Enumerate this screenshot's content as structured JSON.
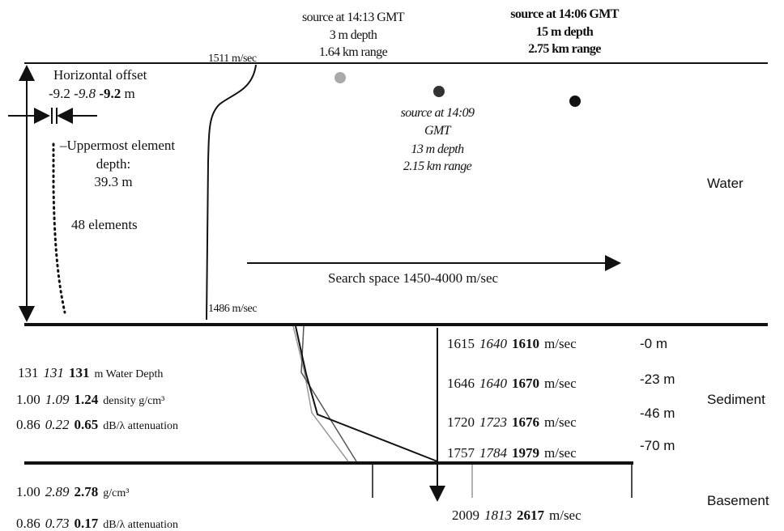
{
  "sources": [
    {
      "time": "source at 14:13 GMT",
      "depth": "3 m depth",
      "range": "1.64 km range"
    },
    {
      "time": "source at 14:09",
      "time2": "GMT",
      "depth": "13 m depth",
      "range": "2.15 km range"
    },
    {
      "time": "source at 14:06 GMT",
      "depth": "15 m depth",
      "range": "2.75 km range"
    }
  ],
  "profile": {
    "top_speed": "1511 m/sec",
    "bottom_speed": "1486 m/sec"
  },
  "array": {
    "offset_title": "Horizontal offset",
    "offsets": [
      "-9.2",
      "-9.8",
      "-9.2"
    ],
    "offset_unit": "m",
    "uppermost": [
      "–Uppermost element",
      "depth:",
      "39.3 m"
    ],
    "elements": "48 elements"
  },
  "search_space": "Search space 1450-4000 m/sec",
  "layers": [
    "Water",
    "Sediment",
    "Basement"
  ],
  "sediment": {
    "water_depth": {
      "values": [
        "131",
        "131",
        "131"
      ],
      "label": "m  Water Depth"
    },
    "density": {
      "values": [
        "1.00",
        "1.09",
        "1.24"
      ],
      "label": "density g/cm³"
    },
    "attenuation": {
      "values": [
        "0.86",
        "0.22",
        "0.65"
      ],
      "label": "dB/λ  attenuation"
    },
    "speeds": [
      {
        "values": [
          "1615",
          "1640",
          "1610"
        ],
        "unit": "m/sec"
      },
      {
        "values": [
          "1646",
          "1640",
          "1670"
        ],
        "unit": "m/sec"
      },
      {
        "values": [
          "1720",
          "1723",
          "1676"
        ],
        "unit": "m/sec"
      },
      {
        "values": [
          "1757",
          "1784",
          "1979"
        ],
        "unit": "m/sec"
      }
    ],
    "depths": [
      "-0 m",
      "-23 m",
      "-46 m",
      "-70 m"
    ]
  },
  "basement": {
    "density": {
      "values": [
        "1.00",
        "2.89",
        "2.78"
      ],
      "label": "g/cm³"
    },
    "attenuation": {
      "values": [
        "0.86",
        "0.73",
        "0.17"
      ],
      "label": "dB/λ  attenuation"
    },
    "speed": {
      "values": [
        "2009",
        "1813",
        "2617"
      ],
      "unit": "m/sec"
    }
  }
}
